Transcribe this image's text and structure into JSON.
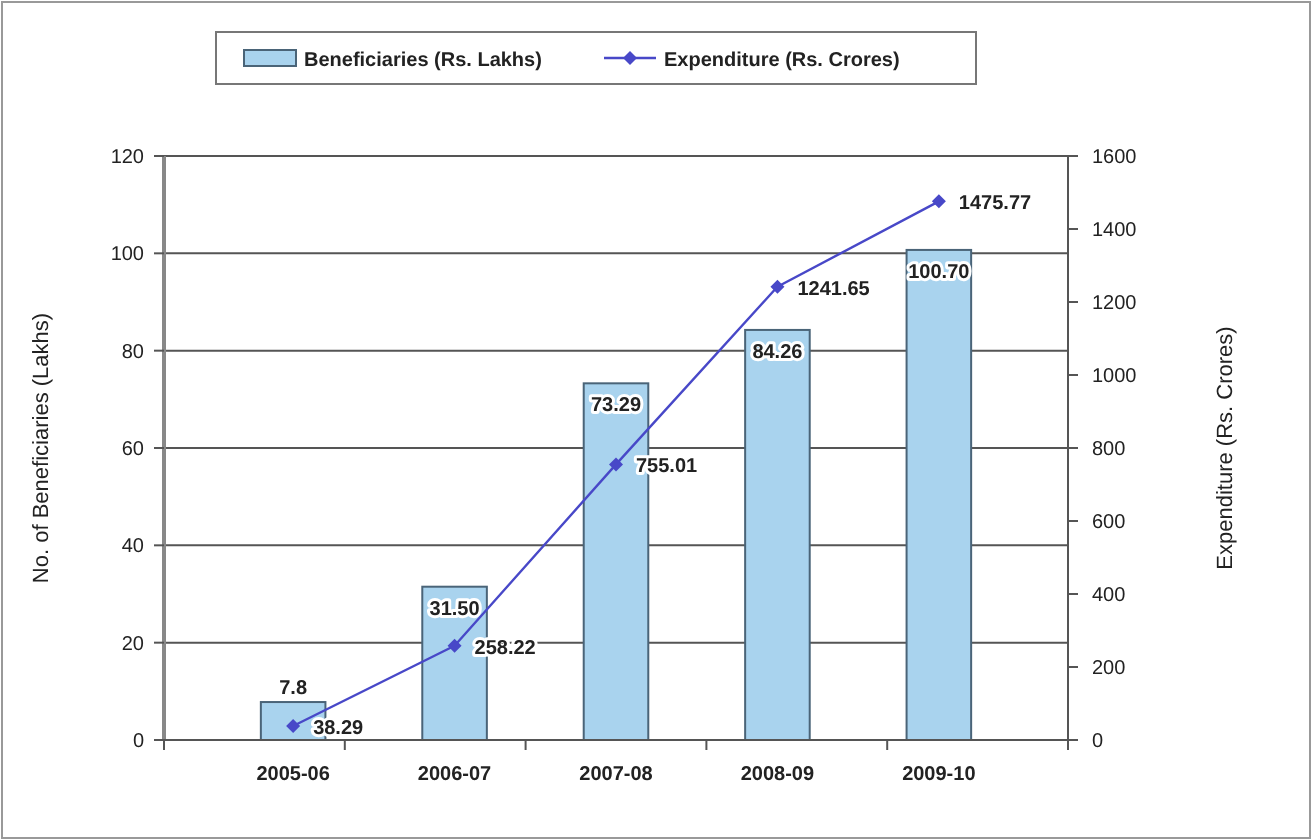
{
  "chart_data": {
    "type": "bar",
    "categories": [
      "2005-06",
      "2006-07",
      "2007-08",
      "2008-09",
      "2009-10"
    ],
    "ylabel": "No. of Beneficiaries (Lakhs)",
    "y2label": "Expenditure (Rs. Crores)",
    "ylim": [
      0,
      120
    ],
    "yticks": [
      0,
      20,
      40,
      60,
      80,
      100,
      120
    ],
    "y2lim": [
      0,
      1600
    ],
    "y2ticks": [
      0,
      200,
      400,
      600,
      800,
      1000,
      1200,
      1400,
      1600
    ],
    "grid": "y",
    "legend": "top",
    "data_labels": true,
    "marker": "diamond",
    "line_style": "solid",
    "series": [
      {
        "name": "Beneficiaries (Rs. Lakhs)",
        "color": "#a9d3ee",
        "values": [
          7.8,
          31.5,
          73.29,
          84.26,
          100.7
        ],
        "value_labels": [
          "7.8",
          "31.50",
          "73.29",
          "84.26",
          "100.70"
        ]
      },
      {
        "name": "Expenditure (Rs. Crores)",
        "type": "line",
        "axis": "y2",
        "color": "#4848c8",
        "values": [
          38.29,
          258.22,
          755.01,
          1241.65,
          1475.77
        ],
        "value_labels": [
          "38.29",
          "258.22",
          "755.01",
          "1241.65",
          "1475.77"
        ]
      }
    ]
  }
}
